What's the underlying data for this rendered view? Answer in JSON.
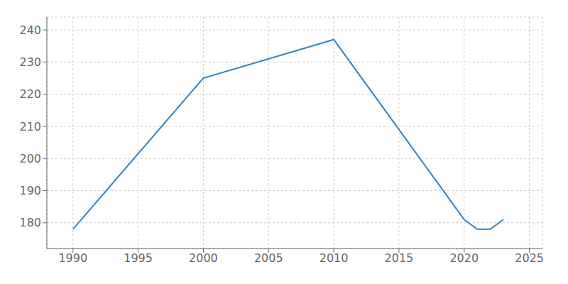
{
  "chart_data": {
    "type": "line",
    "x": [
      1990,
      2000,
      2010,
      2020,
      2021,
      2022,
      2023
    ],
    "values": [
      178,
      225,
      237,
      181,
      178,
      178,
      181
    ],
    "xlim": [
      1988,
      2026
    ],
    "ylim": [
      172,
      244
    ],
    "xticks": [
      1990,
      1995,
      2000,
      2005,
      2010,
      2015,
      2020,
      2025
    ],
    "yticks": [
      180,
      190,
      200,
      210,
      220,
      230,
      240
    ],
    "grid": true
  }
}
